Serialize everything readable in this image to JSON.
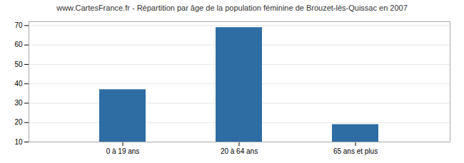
{
  "chart_data": {
    "type": "bar",
    "title": "www.CartesFrance.fr - Répartition par âge de la population féminine de Brouzet-lès-Quissac en 2007",
    "categories": [
      "0 à 19 ans",
      "20 à 64 ans",
      "65 ans et plus"
    ],
    "values": [
      37,
      69,
      19
    ],
    "color": "#2e6da4",
    "ylim": [
      10,
      72
    ],
    "yticks": [
      10,
      20,
      30,
      40,
      50,
      60,
      70
    ],
    "grid": true
  }
}
